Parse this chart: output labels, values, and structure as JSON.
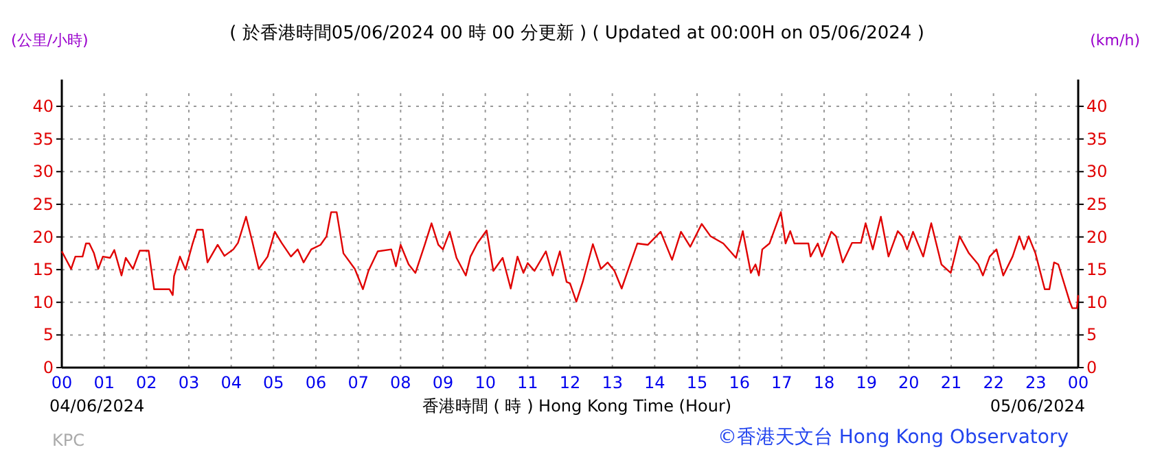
{
  "chart_data": {
    "type": "line",
    "title": "( 於香港時間05/06/2024 00 時 00 分更新 ) ( Updated at 00:00H on 05/06/2024 )",
    "xlabel": "香港時間 ( 時 )  Hong Kong Time (Hour)",
    "ylabel": "(公里/小時)",
    "y2label": "(km/h)",
    "annotations": [
      "04/06/2024",
      "05/06/2024",
      "KPC",
      "©香港天文台 Hong Kong Observatory"
    ],
    "xlim": [
      0,
      24
    ],
    "xticks": [
      {
        "value": 0,
        "label": "00"
      },
      {
        "value": 1,
        "label": "01"
      },
      {
        "value": 2,
        "label": "02"
      },
      {
        "value": 3,
        "label": "03"
      },
      {
        "value": 4,
        "label": "04"
      },
      {
        "value": 5,
        "label": "05"
      },
      {
        "value": 6,
        "label": "06"
      },
      {
        "value": 7,
        "label": "07"
      },
      {
        "value": 8,
        "label": "08"
      },
      {
        "value": 9,
        "label": "09"
      },
      {
        "value": 10,
        "label": "10"
      },
      {
        "value": 11,
        "label": "11"
      },
      {
        "value": 12,
        "label": "12"
      },
      {
        "value": 13,
        "label": "13"
      },
      {
        "value": 14,
        "label": "14"
      },
      {
        "value": 15,
        "label": "15"
      },
      {
        "value": 16,
        "label": "16"
      },
      {
        "value": 17,
        "label": "17"
      },
      {
        "value": 18,
        "label": "18"
      },
      {
        "value": 19,
        "label": "19"
      },
      {
        "value": 20,
        "label": "20"
      },
      {
        "value": 21,
        "label": "21"
      },
      {
        "value": 22,
        "label": "22"
      },
      {
        "value": 23,
        "label": "23"
      },
      {
        "value": 24,
        "label": "00"
      }
    ],
    "ylim": [
      0,
      42
    ],
    "yticks": [
      0,
      5,
      10,
      15,
      20,
      25,
      30,
      35,
      40
    ],
    "y2lim": [
      0,
      42
    ],
    "y2ticks": [
      0,
      5,
      10,
      15,
      20,
      25,
      30,
      35,
      40
    ],
    "grid": true,
    "line_style": "solid",
    "marker": "none",
    "series": [
      {
        "color": "#e00000",
        "x": [
          0.0,
          0.22,
          0.32,
          0.49,
          0.57,
          0.65,
          0.76,
          0.86,
          0.97,
          1.14,
          1.24,
          1.41,
          1.51,
          1.68,
          1.84,
          2.05,
          2.18,
          2.54,
          2.62,
          2.65,
          2.79,
          2.92,
          3.08,
          3.19,
          3.33,
          3.44,
          3.68,
          3.84,
          4.05,
          4.16,
          4.35,
          4.49,
          4.65,
          4.86,
          5.03,
          5.19,
          5.41,
          5.57,
          5.71,
          5.89,
          6.11,
          6.25,
          6.36,
          6.49,
          6.65,
          6.92,
          7.11,
          7.24,
          7.46,
          7.78,
          7.89,
          8.0,
          8.19,
          8.35,
          8.57,
          8.73,
          8.89,
          9.0,
          9.16,
          9.32,
          9.54,
          9.65,
          9.81,
          10.03,
          10.19,
          10.41,
          10.6,
          10.76,
          10.9,
          11.0,
          11.16,
          11.43,
          11.59,
          11.76,
          11.92,
          12.0,
          12.15,
          12.3,
          12.54,
          12.73,
          12.89,
          13.05,
          13.22,
          13.38,
          13.59,
          13.84,
          14.14,
          14.41,
          14.62,
          14.84,
          15.11,
          15.32,
          15.62,
          15.92,
          16.08,
          16.27,
          16.38,
          16.46,
          16.54,
          16.71,
          16.98,
          17.09,
          17.2,
          17.3,
          17.63,
          17.68,
          17.85,
          17.95,
          18.17,
          18.28,
          18.44,
          18.66,
          18.87,
          18.98,
          19.15,
          19.34,
          19.52,
          19.74,
          19.85,
          19.96,
          20.1,
          20.34,
          20.53,
          20.77,
          20.99,
          21.2,
          21.42,
          21.64,
          21.75,
          21.91,
          22.07,
          22.23,
          22.45,
          22.61,
          22.72,
          22.83,
          22.99,
          23.21,
          23.32,
          23.43,
          23.53,
          23.8,
          23.86,
          23.97,
          24.0
        ],
        "values": [
          17.8,
          15.1,
          17,
          17,
          19,
          19,
          17.5,
          15.1,
          17,
          16.8,
          18,
          14.1,
          16.8,
          15.1,
          17.9,
          17.9,
          12,
          12,
          11.1,
          14,
          17,
          15,
          18.8,
          21.1,
          21.1,
          16.1,
          18.8,
          17.1,
          18.1,
          19.1,
          23.1,
          19.5,
          15.1,
          17,
          20.8,
          19.1,
          17,
          18.1,
          16.1,
          18.1,
          18.8,
          20.1,
          23.8,
          23.8,
          17.5,
          15.1,
          12,
          14.8,
          17.8,
          18.1,
          15.5,
          18.8,
          15.8,
          14.5,
          18.8,
          22.1,
          18.8,
          18.1,
          20.8,
          16.8,
          14.1,
          17,
          19,
          21,
          14.8,
          16.8,
          12.1,
          17,
          14.5,
          16,
          14.8,
          17.8,
          14.1,
          17.8,
          13.1,
          12.9,
          10.1,
          13.1,
          18.9,
          15.1,
          16.1,
          14.8,
          12.1,
          15.1,
          19,
          18.8,
          20.8,
          16.5,
          20.8,
          18.5,
          22,
          20.1,
          19,
          16.8,
          20.9,
          14.5,
          15.8,
          14.1,
          18.1,
          19,
          23.8,
          19,
          20.9,
          19,
          19,
          17,
          19,
          17,
          20.8,
          20.1,
          16.1,
          19.1,
          19.1,
          22.1,
          18.1,
          23.1,
          17,
          20.9,
          20.1,
          18.1,
          20.8,
          17,
          22.1,
          15.8,
          14.5,
          20.1,
          17.5,
          15.8,
          14.1,
          17,
          18.1,
          14.1,
          17,
          20.1,
          18.1,
          20.1,
          17.5,
          12,
          12,
          16.1,
          15.8,
          10.1,
          9.1,
          9.1,
          11.1
        ]
      }
    ]
  }
}
